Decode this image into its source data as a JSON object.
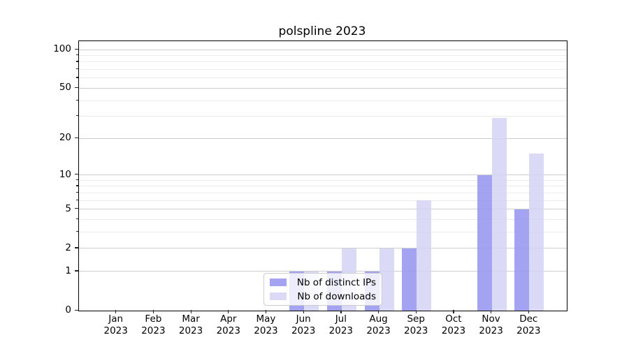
{
  "figure": {
    "title": "polspline 2023"
  },
  "chart_data": {
    "type": "bar",
    "title": "polspline 2023",
    "categories": [
      "Jan 2023",
      "Feb 2023",
      "Mar 2023",
      "Apr 2023",
      "May 2023",
      "Jun 2023",
      "Jul 2023",
      "Aug 2023",
      "Sep 2023",
      "Oct 2023",
      "Nov 2023",
      "Dec 2023"
    ],
    "series": [
      {
        "name": "Nb of distinct IPs",
        "color": "rgba(147,147,238,0.85)",
        "values": [
          0,
          0,
          0,
          0,
          0,
          1,
          1,
          1,
          2,
          0,
          10,
          5
        ]
      },
      {
        "name": "Nb of downloads",
        "color": "rgba(211,211,246,0.85)",
        "values": [
          0,
          0,
          0,
          0,
          0,
          1,
          2,
          2,
          6,
          0,
          29,
          15
        ]
      }
    ],
    "xlabel": "",
    "ylabel": "",
    "y_axis": {
      "scale": "log1p",
      "major_ticks": [
        0,
        1,
        2,
        5,
        10,
        20,
        50,
        100
      ],
      "minor_ticks": [
        3,
        4,
        6,
        7,
        8,
        9,
        30,
        40,
        60,
        70,
        80,
        90
      ],
      "ylim": [
        0,
        115
      ]
    },
    "grid": "on",
    "legend": {
      "position": "lower-center",
      "entries": [
        "Nb of distinct IPs",
        "Nb of downloads"
      ]
    }
  }
}
